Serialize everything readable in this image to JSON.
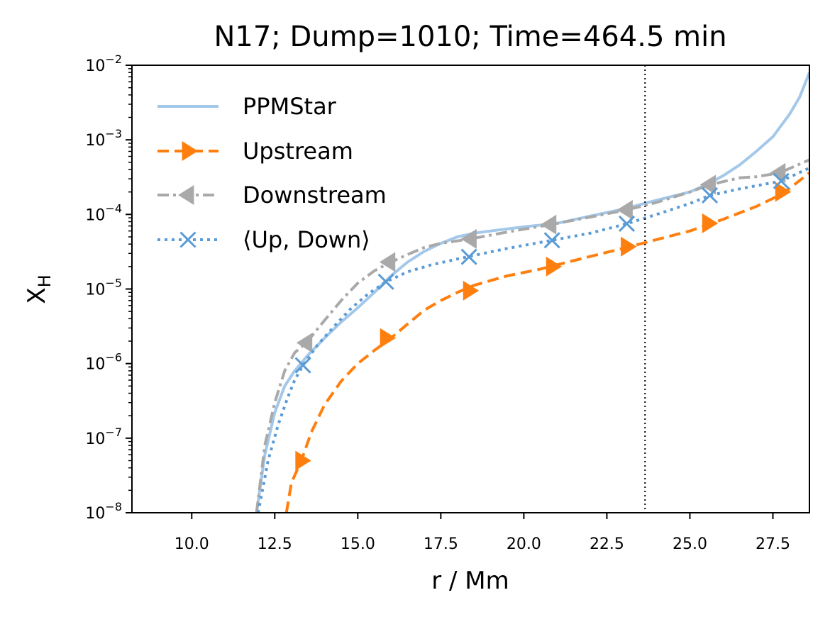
{
  "chart_data": {
    "type": "line",
    "title": "N17; Dump=1010; Time=464.5 min",
    "xlabel": "r / Mm",
    "ylabel": {
      "base": "X",
      "sub": "H"
    },
    "xlim": [
      8.2,
      28.6
    ],
    "ylim": [
      1e-08,
      0.01
    ],
    "yscale": "log",
    "xticks": [
      10.0,
      12.5,
      15.0,
      17.5,
      20.0,
      22.5,
      25.0,
      27.5
    ],
    "xtick_labels": [
      "10.0",
      "12.5",
      "15.0",
      "17.5",
      "20.0",
      "22.5",
      "25.0",
      "27.5"
    ],
    "yticks": [
      {
        "value": 1e-08,
        "base": "10",
        "exp": "−8"
      },
      {
        "value": 1e-07,
        "base": "10",
        "exp": "−7"
      },
      {
        "value": 1e-06,
        "base": "10",
        "exp": "−6"
      },
      {
        "value": 1e-05,
        "base": "10",
        "exp": "−5"
      },
      {
        "value": 0.0001,
        "base": "10",
        "exp": "−4"
      },
      {
        "value": 0.001,
        "base": "10",
        "exp": "−3"
      },
      {
        "value": 0.01,
        "base": "10",
        "exp": "−2"
      }
    ],
    "vline": {
      "x": 23.65,
      "style": "dotted",
      "color": "#000000"
    },
    "legend_position": "top-left",
    "series": [
      {
        "name": "PPMStar",
        "color": "#a3c8e9",
        "dash": "solid",
        "marker": "none",
        "x": [
          11.95,
          12.2,
          12.5,
          12.8,
          13.1,
          13.5,
          14.0,
          14.5,
          15.0,
          15.5,
          16.0,
          16.5,
          17.0,
          17.5,
          18.0,
          18.5,
          19.0,
          20.0,
          21.0,
          22.0,
          23.0,
          24.0,
          25.0,
          25.5,
          26.0,
          26.5,
          27.0,
          27.5,
          28.0,
          28.3,
          28.6
        ],
        "y": [
          1e-08,
          6e-08,
          2.2e-07,
          5e-07,
          8e-07,
          1.3e-06,
          2.2e-06,
          3.6e-06,
          5.6e-06,
          9e-06,
          1.5e-05,
          2.3e-05,
          3.2e-05,
          4.1e-05,
          5e-05,
          5.6e-05,
          6e-05,
          6.8e-05,
          7.6e-05,
          9.5e-05,
          0.000118,
          0.000155,
          0.0002,
          0.00025,
          0.00033,
          0.00046,
          0.0007,
          0.0011,
          0.0022,
          0.0037,
          0.008
        ]
      },
      {
        "name": "Upstream",
        "color": "#ff7f0e",
        "dash": "dashed",
        "marker": "triangle-right",
        "x": [
          12.85,
          13.0,
          13.3,
          13.6,
          14.0,
          14.5,
          15.0,
          15.5,
          16.0,
          16.5,
          17.0,
          17.5,
          18.0,
          18.5,
          19.5,
          20.5,
          21.5,
          22.5,
          23.2,
          24.0,
          25.0,
          26.0,
          27.0,
          27.8,
          28.6
        ],
        "y": [
          1e-08,
          2.5e-08,
          5e-08,
          1.2e-07,
          2.8e-07,
          5.8e-07,
          1e-06,
          1.5e-06,
          2.2e-06,
          3.4e-06,
          5.2e-06,
          7e-06,
          9e-06,
          1.12e-05,
          1.5e-05,
          1.85e-05,
          2.4e-05,
          3.1e-05,
          3.7e-05,
          4.6e-05,
          6e-05,
          8.6e-05,
          0.000128,
          0.00019,
          0.00036
        ],
        "markers_x": [
          13.3,
          15.85,
          18.35,
          20.85,
          23.1,
          25.55,
          27.75
        ],
        "markers_y": [
          5e-08,
          2.2e-06,
          9.5e-06,
          2e-05,
          3.7e-05,
          7.6e-05,
          0.0002
        ]
      },
      {
        "name": "Downstream",
        "color": "#a9a9a9",
        "dash": "dashdot",
        "marker": "triangle-left",
        "x": [
          11.95,
          12.2,
          12.5,
          12.8,
          13.1,
          13.45,
          14.0,
          14.5,
          15.0,
          15.5,
          16.0,
          16.5,
          17.0,
          17.5,
          18.4,
          19.5,
          20.8,
          22.0,
          23.1,
          24.0,
          25.0,
          25.6,
          26.5,
          27.0,
          27.7,
          28.6
        ],
        "y": [
          1e-08,
          8e-08,
          3e-07,
          8e-07,
          1.4e-06,
          1.9e-06,
          3.8e-06,
          7e-06,
          1.2e-05,
          1.75e-05,
          2.3e-05,
          2.9e-05,
          3.6e-05,
          4.1e-05,
          4.7e-05,
          5.8e-05,
          7.3e-05,
          9.2e-05,
          0.000115,
          0.000145,
          0.0002,
          0.00025,
          0.00031,
          0.00032,
          0.00036,
          0.00054
        ],
        "markers_x": [
          13.45,
          15.95,
          18.4,
          20.8,
          23.1,
          25.6,
          27.7
        ],
        "markers_y": [
          1.9e-06,
          2.3e-05,
          4.7e-05,
          7.3e-05,
          0.000115,
          0.00025,
          0.00036
        ]
      },
      {
        "name": "⟨Up, Down⟩",
        "color": "#5b9bd5",
        "dash": "dotted",
        "marker": "x",
        "x": [
          12.0,
          12.3,
          12.6,
          12.9,
          13.1,
          13.35,
          13.8,
          14.3,
          14.8,
          15.3,
          15.85,
          16.5,
          17.2,
          18.3,
          19.5,
          20.85,
          22.0,
          23.1,
          24.0,
          25.0,
          25.6,
          26.5,
          27.75,
          28.6
        ],
        "y": [
          1e-08,
          5e-08,
          1.5e-07,
          3.6e-07,
          6e-07,
          9.5e-07,
          1.8e-06,
          3.2e-06,
          5.5e-06,
          8.5e-06,
          1.25e-05,
          1.7e-05,
          2.1e-05,
          2.7e-05,
          3.5e-05,
          4.5e-05,
          5.6e-05,
          7.5e-05,
          0.0001,
          0.00014,
          0.00018,
          0.00022,
          0.00028,
          0.00042
        ],
        "markers_x": [
          13.35,
          15.85,
          18.35,
          20.85,
          23.1,
          25.6,
          27.75
        ],
        "markers_y": [
          9.5e-07,
          1.25e-05,
          2.7e-05,
          4.5e-05,
          7.5e-05,
          0.00018,
          0.00028
        ]
      }
    ]
  }
}
